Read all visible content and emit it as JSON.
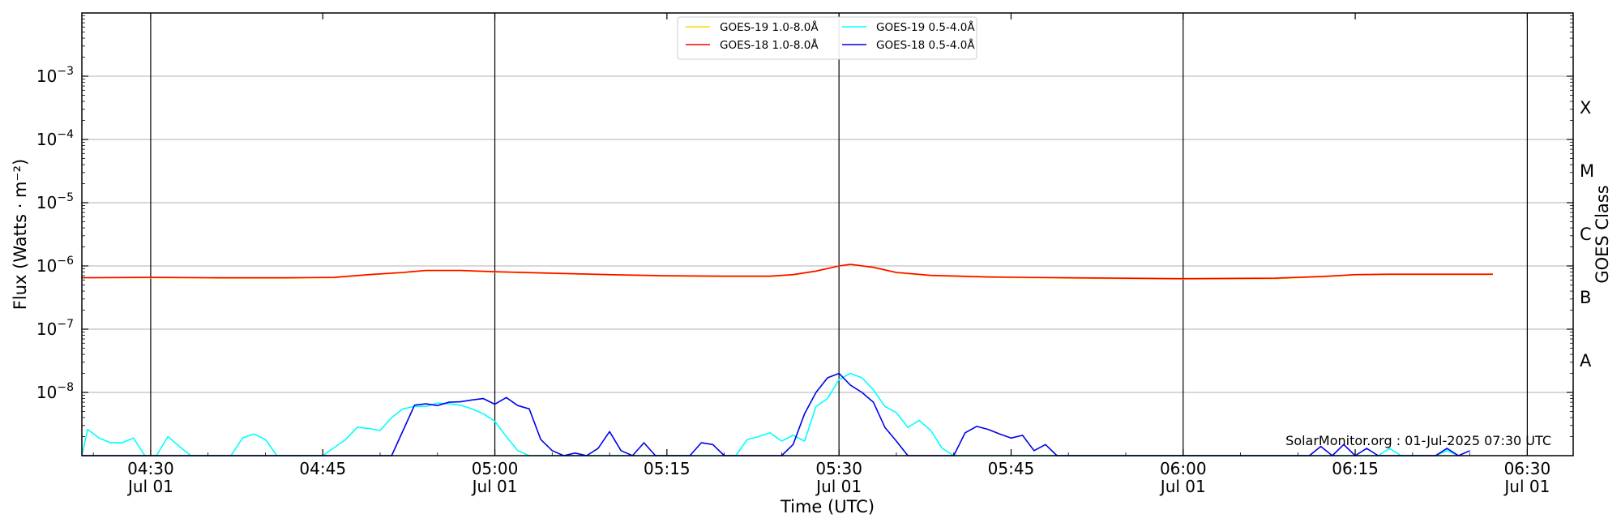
{
  "chart_data": {
    "type": "line",
    "title": "",
    "xlabel": "Time (UTC)",
    "ylabel": "Flux (Watts · m⁻²)",
    "y2label": "GOES Class",
    "yscale": "log",
    "ylim": [
      1e-09,
      0.01
    ],
    "xlim": [
      "04:24",
      "06:34"
    ],
    "grid": "horizontal at decades",
    "legend_position": "top-center",
    "x_ticks": [
      {
        "t": "04:30",
        "label": "04:30",
        "sublabel": "Jul 01"
      },
      {
        "t": "04:45",
        "label": "04:45",
        "sublabel": ""
      },
      {
        "t": "05:00",
        "label": "05:00",
        "sublabel": "Jul 01"
      },
      {
        "t": "05:15",
        "label": "05:15",
        "sublabel": ""
      },
      {
        "t": "05:30",
        "label": "05:30",
        "sublabel": "Jul 01"
      },
      {
        "t": "05:45",
        "label": "05:45",
        "sublabel": ""
      },
      {
        "t": "06:00",
        "label": "06:00",
        "sublabel": "Jul 01"
      },
      {
        "t": "06:15",
        "label": "06:15",
        "sublabel": ""
      },
      {
        "t": "06:30",
        "label": "06:30",
        "sublabel": "Jul 01"
      }
    ],
    "vlines": [
      "04:30",
      "05:00",
      "05:30",
      "06:00",
      "06:30"
    ],
    "y_ticks": [
      {
        "value": 1e-08,
        "mant": "10",
        "exp": "−8"
      },
      {
        "value": 1e-07,
        "mant": "10",
        "exp": "−7"
      },
      {
        "value": 1e-06,
        "mant": "10",
        "exp": "−6"
      },
      {
        "value": 1e-05,
        "mant": "10",
        "exp": "−5"
      },
      {
        "value": 0.0001,
        "mant": "10",
        "exp": "−4"
      },
      {
        "value": 0.001,
        "mant": "10",
        "exp": "−3"
      }
    ],
    "goes_classes": [
      {
        "label": "A",
        "value": 3.16e-08
      },
      {
        "label": "B",
        "value": 3.16e-07
      },
      {
        "label": "C",
        "value": 3.16e-06
      },
      {
        "label": "M",
        "value": 3.16e-05
      },
      {
        "label": "X",
        "value": 0.000316
      }
    ],
    "watermark": "SolarMonitor.org : 01-Jul-2025 07:30 UTC",
    "series": [
      {
        "name": "GOES-19 1.0-8.0Å",
        "color": "#ffd700",
        "points": [
          [
            "04:24",
            6.5e-07
          ],
          [
            "04:30",
            6.5e-07
          ],
          [
            "04:36",
            6.4e-07
          ],
          [
            "04:42",
            6.4e-07
          ],
          [
            "04:46",
            6.5e-07
          ],
          [
            "04:49",
            7.2e-07
          ],
          [
            "04:52",
            7.8e-07
          ],
          [
            "04:54",
            8.4e-07
          ],
          [
            "04:57",
            8.4e-07
          ],
          [
            "05:00",
            8e-07
          ],
          [
            "05:05",
            7.6e-07
          ],
          [
            "05:10",
            7.2e-07
          ],
          [
            "05:15",
            6.9e-07
          ],
          [
            "05:20",
            6.8e-07
          ],
          [
            "05:24",
            6.8e-07
          ],
          [
            "05:26",
            7.2e-07
          ],
          [
            "05:28",
            8.2e-07
          ],
          [
            "05:30",
            1e-06
          ],
          [
            "05:31",
            1.05e-06
          ],
          [
            "05:33",
            9.4e-07
          ],
          [
            "05:35",
            7.8e-07
          ],
          [
            "05:38",
            7e-07
          ],
          [
            "05:43",
            6.6e-07
          ],
          [
            "05:50",
            6.4e-07
          ],
          [
            "06:00",
            6.2e-07
          ],
          [
            "06:08",
            6.3e-07
          ],
          [
            "06:12",
            6.7e-07
          ],
          [
            "06:15",
            7.2e-07
          ],
          [
            "06:18",
            7.3e-07
          ],
          [
            "06:22",
            7.3e-07
          ],
          [
            "06:27",
            7.3e-07
          ]
        ]
      },
      {
        "name": "GOES-18 1.0-8.0Å",
        "color": "#ff0000",
        "points": [
          [
            "04:24",
            6.5e-07
          ],
          [
            "04:30",
            6.6e-07
          ],
          [
            "04:36",
            6.5e-07
          ],
          [
            "04:42",
            6.5e-07
          ],
          [
            "04:46",
            6.6e-07
          ],
          [
            "04:49",
            7.3e-07
          ],
          [
            "04:52",
            7.9e-07
          ],
          [
            "04:54",
            8.5e-07
          ],
          [
            "04:57",
            8.5e-07
          ],
          [
            "05:00",
            8.1e-07
          ],
          [
            "05:05",
            7.7e-07
          ],
          [
            "05:10",
            7.3e-07
          ],
          [
            "05:15",
            7e-07
          ],
          [
            "05:20",
            6.9e-07
          ],
          [
            "05:24",
            6.9e-07
          ],
          [
            "05:26",
            7.3e-07
          ],
          [
            "05:28",
            8.3e-07
          ],
          [
            "05:30",
            1e-06
          ],
          [
            "05:31",
            1.06e-06
          ],
          [
            "05:33",
            9.5e-07
          ],
          [
            "05:35",
            7.9e-07
          ],
          [
            "05:38",
            7.1e-07
          ],
          [
            "05:43",
            6.7e-07
          ],
          [
            "05:50",
            6.5e-07
          ],
          [
            "06:00",
            6.3e-07
          ],
          [
            "06:08",
            6.4e-07
          ],
          [
            "06:12",
            6.8e-07
          ],
          [
            "06:15",
            7.3e-07
          ],
          [
            "06:18",
            7.4e-07
          ],
          [
            "06:22",
            7.4e-07
          ],
          [
            "06:27",
            7.4e-07
          ]
        ]
      },
      {
        "name": "GOES-19 0.5-4.0Å",
        "color": "#00ffff",
        "points": [
          [
            "04:24",
            1e-09
          ],
          [
            "04:24.5",
            2.6e-09
          ],
          [
            "04:25.5",
            1.9e-09
          ],
          [
            "04:26.5",
            1.6e-09
          ],
          [
            "04:27.5",
            1.6e-09
          ],
          [
            "04:28.5",
            1.9e-09
          ],
          [
            "04:29.5",
            1e-09
          ],
          [
            "04:30.5",
            1e-09
          ],
          [
            "04:31.5",
            2e-09
          ],
          [
            "04:32.5",
            1.4e-09
          ],
          [
            "04:33.5",
            1e-09
          ],
          [
            "04:37",
            1e-09
          ],
          [
            "04:38",
            1.9e-09
          ],
          [
            "04:39",
            2.2e-09
          ],
          [
            "04:40",
            1.8e-09
          ],
          [
            "04:41",
            1e-09
          ],
          [
            "04:45",
            1e-09
          ],
          [
            "04:47",
            1.8e-09
          ],
          [
            "04:48",
            2.8e-09
          ],
          [
            "04:49",
            2.7e-09
          ],
          [
            "04:50",
            2.5e-09
          ],
          [
            "04:51",
            4e-09
          ],
          [
            "04:52",
            5.5e-09
          ],
          [
            "04:53",
            6e-09
          ],
          [
            "04:54",
            6e-09
          ],
          [
            "04:55",
            6.8e-09
          ],
          [
            "04:56",
            6.6e-09
          ],
          [
            "04:57",
            6.3e-09
          ],
          [
            "04:58",
            5.5e-09
          ],
          [
            "04:59",
            4.6e-09
          ],
          [
            "05:00",
            3.5e-09
          ],
          [
            "05:01",
            2e-09
          ],
          [
            "05:02",
            1.2e-09
          ],
          [
            "05:03",
            1e-09
          ],
          [
            "05:21",
            1e-09
          ],
          [
            "05:22",
            1.8e-09
          ],
          [
            "05:23",
            2e-09
          ],
          [
            "05:24",
            2.3e-09
          ],
          [
            "05:25",
            1.7e-09
          ],
          [
            "05:26",
            2.1e-09
          ],
          [
            "05:27",
            1.7e-09
          ],
          [
            "05:28",
            6e-09
          ],
          [
            "05:29",
            8e-09
          ],
          [
            "05:30",
            1.6e-08
          ],
          [
            "05:31",
            2e-08
          ],
          [
            "05:32",
            1.7e-08
          ],
          [
            "05:33",
            1.1e-08
          ],
          [
            "05:34",
            6e-09
          ],
          [
            "05:35",
            4.8e-09
          ],
          [
            "05:36",
            2.8e-09
          ],
          [
            "05:37",
            3.6e-09
          ],
          [
            "05:38",
            2.5e-09
          ],
          [
            "05:39",
            1.3e-09
          ],
          [
            "05:40",
            1e-09
          ],
          [
            "06:17",
            1e-09
          ],
          [
            "06:18",
            1.3e-09
          ],
          [
            "06:19",
            1e-09
          ],
          [
            "06:22",
            1e-09
          ],
          [
            "06:23",
            1.2e-09
          ],
          [
            "06:24",
            1e-09
          ]
        ]
      },
      {
        "name": "GOES-18 0.5-4.0Å",
        "color": "#0000ee",
        "points": [
          [
            "04:24",
            1e-09
          ],
          [
            "04:50",
            1e-09
          ],
          [
            "04:51",
            1e-09
          ],
          [
            "04:53",
            6.3e-09
          ],
          [
            "04:54",
            6.6e-09
          ],
          [
            "04:55",
            6.2e-09
          ],
          [
            "04:56",
            7e-09
          ],
          [
            "04:57",
            7.1e-09
          ],
          [
            "04:58",
            7.6e-09
          ],
          [
            "04:59",
            8e-09
          ],
          [
            "05:00",
            6.5e-09
          ],
          [
            "05:01",
            8.3e-09
          ],
          [
            "05:02",
            6.2e-09
          ],
          [
            "05:03",
            5.5e-09
          ],
          [
            "05:04",
            1.8e-09
          ],
          [
            "05:05",
            1.2e-09
          ],
          [
            "05:06",
            1e-09
          ],
          [
            "05:07",
            1.1e-09
          ],
          [
            "05:08",
            1e-09
          ],
          [
            "05:09",
            1.3e-09
          ],
          [
            "05:10",
            2.4e-09
          ],
          [
            "05:11",
            1.2e-09
          ],
          [
            "05:12",
            1e-09
          ],
          [
            "05:13",
            1.6e-09
          ],
          [
            "05:14",
            1e-09
          ],
          [
            "05:17",
            1e-09
          ],
          [
            "05:18",
            1.6e-09
          ],
          [
            "05:19",
            1.5e-09
          ],
          [
            "05:20",
            1e-09
          ],
          [
            "05:25",
            1e-09
          ],
          [
            "05:26",
            1.5e-09
          ],
          [
            "05:27",
            4.6e-09
          ],
          [
            "05:28",
            1e-08
          ],
          [
            "05:29",
            1.7e-08
          ],
          [
            "05:30",
            2e-08
          ],
          [
            "05:31",
            1.3e-08
          ],
          [
            "05:32",
            1e-08
          ],
          [
            "05:33",
            7e-09
          ],
          [
            "05:34",
            2.8e-09
          ],
          [
            "05:35",
            1.7e-09
          ],
          [
            "05:36",
            1e-09
          ],
          [
            "05:40",
            1e-09
          ],
          [
            "05:41",
            2.3e-09
          ],
          [
            "05:42",
            2.9e-09
          ],
          [
            "05:43",
            2.6e-09
          ],
          [
            "05:44",
            2.2e-09
          ],
          [
            "05:45",
            1.9e-09
          ],
          [
            "05:46",
            2.1e-09
          ],
          [
            "05:47",
            1.2e-09
          ],
          [
            "05:48",
            1.5e-09
          ],
          [
            "05:49",
            1e-09
          ],
          [
            "06:11",
            1e-09
          ],
          [
            "06:12",
            1.4e-09
          ],
          [
            "06:13",
            1e-09
          ],
          [
            "06:14",
            1.5e-09
          ],
          [
            "06:15",
            1e-09
          ],
          [
            "06:16",
            1.3e-09
          ],
          [
            "06:17",
            1e-09
          ],
          [
            "06:22",
            1e-09
          ],
          [
            "06:23",
            1.3e-09
          ],
          [
            "06:24",
            1e-09
          ],
          [
            "06:25",
            1.2e-09
          ]
        ]
      }
    ]
  }
}
